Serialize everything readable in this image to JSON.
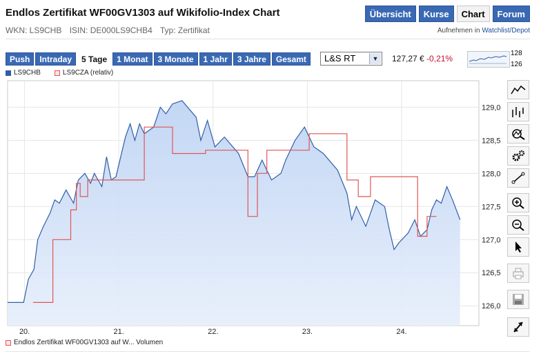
{
  "header": {
    "title": "Endlos Zertifikat WF00GV1303 auf Wikifolio-Index Chart",
    "nav": [
      {
        "label": "Übersicht",
        "active": false
      },
      {
        "label": "Kurse",
        "active": false
      },
      {
        "label": "Chart",
        "active": true
      },
      {
        "label": "Forum",
        "active": false
      }
    ]
  },
  "info": {
    "wkn": "WKN: LS9CHB",
    "isin": "ISIN: DE000LS9CHB4",
    "typ": "Typ: Zertifikat",
    "watch_prefix": "Aufnehmen in",
    "watch_link": "Watchlist/Depot"
  },
  "toolbar": {
    "ranges": [
      {
        "label": "Push",
        "active": false
      },
      {
        "label": "Intraday",
        "active": false
      },
      {
        "label": "5 Tage",
        "active": true
      },
      {
        "label": "1 Monat",
        "active": false
      },
      {
        "label": "3 Monate",
        "active": false
      },
      {
        "label": "1 Jahr",
        "active": false
      },
      {
        "label": "3 Jahre",
        "active": false
      },
      {
        "label": "Gesamt",
        "active": false
      }
    ],
    "exchange": "L&S RT",
    "price": "127,27 €",
    "change": "-0,21%",
    "spark_high": "128",
    "spark_low": "126"
  },
  "legend": {
    "s1": "LS9CHB",
    "s2": "LS9CZA (relativ)",
    "volume": "Endlos Zertifikat WF00GV1303 auf W... Volumen"
  },
  "colors": {
    "series1": "#2f5ea7",
    "series2": "#e05555",
    "fill": "#cfdff7",
    "nav": "#3a69b4"
  },
  "tool_icons": [
    "line-chart-icon",
    "ohlc-chart-icon",
    "indicator-icon",
    "settings-icon",
    "draw-line-icon",
    "zoom-in-icon",
    "zoom-out-icon",
    "pointer-icon",
    "print-icon",
    "save-icon",
    "fullscreen-icon"
  ],
  "chart_data": {
    "type": "line",
    "x_ticks": [
      "20.",
      "21.",
      "22.",
      "23.",
      "24."
    ],
    "y_ticks": [
      "126,0",
      "126,5",
      "127,0",
      "127,5",
      "128,0",
      "128,5",
      "129,0"
    ],
    "ylim": [
      125.7,
      129.4
    ],
    "grid": true,
    "series": [
      {
        "name": "LS9CHB",
        "color": "#2f5ea7",
        "filled": true,
        "points": [
          [
            0,
            126.05
          ],
          [
            0.17,
            126.05
          ],
          [
            0.22,
            126.4
          ],
          [
            0.28,
            126.55
          ],
          [
            0.32,
            127.0
          ],
          [
            0.38,
            127.2
          ],
          [
            0.45,
            127.4
          ],
          [
            0.5,
            127.6
          ],
          [
            0.55,
            127.55
          ],
          [
            0.62,
            127.75
          ],
          [
            0.7,
            127.55
          ],
          [
            0.75,
            127.9
          ],
          [
            0.82,
            128.0
          ],
          [
            0.88,
            127.85
          ],
          [
            0.92,
            128.0
          ],
          [
            1.0,
            127.8
          ],
          [
            1.05,
            128.25
          ],
          [
            1.1,
            127.9
          ],
          [
            1.15,
            127.95
          ],
          [
            1.2,
            128.25
          ],
          [
            1.25,
            128.55
          ],
          [
            1.3,
            128.75
          ],
          [
            1.35,
            128.5
          ],
          [
            1.4,
            128.75
          ],
          [
            1.45,
            128.6
          ],
          [
            1.55,
            128.7
          ],
          [
            1.62,
            129.0
          ],
          [
            1.68,
            128.9
          ],
          [
            1.75,
            129.05
          ],
          [
            1.85,
            129.1
          ],
          [
            2.0,
            128.85
          ],
          [
            2.05,
            128.5
          ],
          [
            2.12,
            128.8
          ],
          [
            2.2,
            128.4
          ],
          [
            2.3,
            128.55
          ],
          [
            2.45,
            128.3
          ],
          [
            2.55,
            127.95
          ],
          [
            2.62,
            127.95
          ],
          [
            2.7,
            128.2
          ],
          [
            2.8,
            127.9
          ],
          [
            2.9,
            128.0
          ],
          [
            2.95,
            128.2
          ],
          [
            3.0,
            128.35
          ],
          [
            3.05,
            128.5
          ],
          [
            3.15,
            128.7
          ],
          [
            3.25,
            128.4
          ],
          [
            3.35,
            128.3
          ],
          [
            3.5,
            128.05
          ],
          [
            3.6,
            127.7
          ],
          [
            3.65,
            127.3
          ],
          [
            3.7,
            127.5
          ],
          [
            3.8,
            127.2
          ],
          [
            3.9,
            127.6
          ],
          [
            4.0,
            127.5
          ],
          [
            4.05,
            127.15
          ],
          [
            4.1,
            126.85
          ],
          [
            4.15,
            126.95
          ],
          [
            4.25,
            127.1
          ],
          [
            4.32,
            127.3
          ],
          [
            4.38,
            127.05
          ],
          [
            4.45,
            127.15
          ],
          [
            4.5,
            127.45
          ],
          [
            4.55,
            127.6
          ],
          [
            4.6,
            127.55
          ],
          [
            4.66,
            127.8
          ],
          [
            4.72,
            127.6
          ],
          [
            4.8,
            127.3
          ]
        ]
      },
      {
        "name": "LS9CZA (relativ)",
        "color": "#e05555",
        "filled": false,
        "points": [
          [
            0.27,
            126.05
          ],
          [
            0.48,
            126.05
          ],
          [
            0.48,
            127.0
          ],
          [
            0.67,
            127.0
          ],
          [
            0.67,
            127.45
          ],
          [
            0.73,
            127.45
          ],
          [
            0.73,
            127.85
          ],
          [
            0.77,
            127.85
          ],
          [
            0.77,
            127.65
          ],
          [
            0.85,
            127.65
          ],
          [
            0.85,
            127.9
          ],
          [
            1.45,
            127.9
          ],
          [
            1.45,
            128.7
          ],
          [
            1.75,
            128.7
          ],
          [
            1.75,
            128.3
          ],
          [
            2.1,
            128.3
          ],
          [
            2.1,
            128.35
          ],
          [
            2.55,
            128.35
          ],
          [
            2.55,
            127.35
          ],
          [
            2.65,
            127.35
          ],
          [
            2.65,
            128.0
          ],
          [
            2.75,
            128.0
          ],
          [
            2.75,
            128.35
          ],
          [
            3.2,
            128.35
          ],
          [
            3.2,
            128.6
          ],
          [
            3.6,
            128.6
          ],
          [
            3.6,
            127.9
          ],
          [
            3.72,
            127.9
          ],
          [
            3.72,
            127.65
          ],
          [
            3.85,
            127.65
          ],
          [
            3.85,
            127.95
          ],
          [
            4.35,
            127.95
          ],
          [
            4.35,
            127.05
          ],
          [
            4.45,
            127.05
          ],
          [
            4.45,
            127.35
          ],
          [
            4.55,
            127.35
          ]
        ]
      }
    ]
  }
}
